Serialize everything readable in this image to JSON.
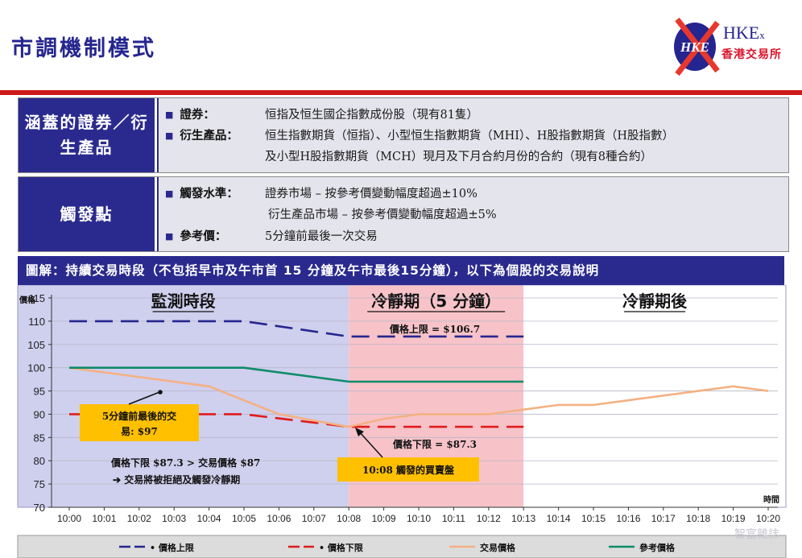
{
  "page": {
    "title": "市調機制模式"
  },
  "logo": {
    "mark_text": "HKE",
    "name_main": "HKE",
    "name_suffix": "x",
    "name_cn": "香港交易所"
  },
  "coverage": {
    "category": "涵蓋的證券／衍生產品",
    "items": [
      {
        "label": "證券：",
        "lines": [
          "恒指及恒生國企指數成份股（現有81隻）"
        ]
      },
      {
        "label": "衍生產品：",
        "lines": [
          "恒生指數期貨（恒指）、小型恒生指數期貨（MHI）、H股指數期貨（H股指數）",
          "及小型H股指數期貨（MCH）現月及下月合約月份的合約（現有8種合約）"
        ]
      }
    ]
  },
  "trigger": {
    "category": "觸發點",
    "items": [
      {
        "label": "觸發水準：",
        "lines": [
          "證券市場 – 按參考價變動幅度超過±10%",
          "衍生產品市場 – 按參考價變動幅度超過±5%"
        ]
      },
      {
        "label": "參考價：",
        "lines": [
          "5分鐘前最後一次交易"
        ]
      }
    ]
  },
  "banner": {
    "text": "圖解：持續交易時段（不包括早市及午市首 15 分鐘及午市最後15分鐘），以下為個股的交易說明"
  },
  "chart_data": {
    "type": "line",
    "ylabel": "價格",
    "xlabel": "時間",
    "ylim": [
      70,
      115
    ],
    "yticks": [
      70,
      75,
      80,
      85,
      90,
      95,
      100,
      105,
      110,
      115
    ],
    "categories": [
      "10:00",
      "10:01",
      "10:02",
      "10:03",
      "10:04",
      "10:05",
      "10:06",
      "10:07",
      "10:08",
      "10:09",
      "10:10",
      "10:11",
      "10:12",
      "10:13",
      "10:14",
      "10:15",
      "10:16",
      "10:17",
      "10:18",
      "10:19",
      "10:20"
    ],
    "zones": [
      {
        "label": "監測時段",
        "from": "10:00",
        "to": "10:08",
        "color": "#cfcfee"
      },
      {
        "label": "冷靜期（5 分鐘）",
        "from": "10:08",
        "to": "10:13",
        "color": "#f7c3c9"
      },
      {
        "label": "冷靜期後",
        "from": "10:13",
        "to": "10:20",
        "color": "#ffffff"
      }
    ],
    "series": [
      {
        "name": "價格上限",
        "color": "#25258f",
        "dash": "long",
        "points": [
          [
            "10:00",
            110
          ],
          [
            "10:05",
            110
          ],
          [
            "10:08",
            106.7
          ],
          [
            "10:13",
            106.7
          ]
        ]
      },
      {
        "name": "價格下限",
        "color": "#e01b1b",
        "dash": "long",
        "points": [
          [
            "10:00",
            90
          ],
          [
            "10:05",
            90
          ],
          [
            "10:08",
            87.3
          ],
          [
            "10:13",
            87.3
          ]
        ]
      },
      {
        "name": "交易價格",
        "color": "#f4b183",
        "dash": "none",
        "points": [
          [
            "10:00",
            100
          ],
          [
            "10:04",
            96
          ],
          [
            "10:06",
            90
          ],
          [
            "10:08",
            87.3
          ],
          [
            "10:09",
            89
          ],
          [
            "10:10",
            90
          ],
          [
            "10:12",
            90
          ],
          [
            "10:13",
            91
          ],
          [
            "10:14",
            92
          ],
          [
            "10:15",
            92
          ],
          [
            "10:17",
            94
          ],
          [
            "10:19",
            96
          ],
          [
            "10:20",
            95
          ]
        ]
      },
      {
        "name": "參考價格",
        "color": "#0e8c6a",
        "dash": "none",
        "points": [
          [
            "10:00",
            100
          ],
          [
            "10:05",
            100
          ],
          [
            "10:08",
            97
          ],
          [
            "10:13",
            97
          ]
        ]
      }
    ],
    "annotations": {
      "upper_limit": "價格上限 = $106.7",
      "lower_limit": "價格下限 = $87.3",
      "ref_price_box": [
        "5分鐘前最後的交",
        "易: $97"
      ],
      "trigger_box": "10:08 觸發的買賣盤",
      "explain_1": "價格下限 $87.3 > 交易價格 $87",
      "explain_2": "➔ 交易將被拒絕及觸發冷靜期"
    },
    "legend_position": "bottom"
  },
  "watermark": "智富雜誌"
}
